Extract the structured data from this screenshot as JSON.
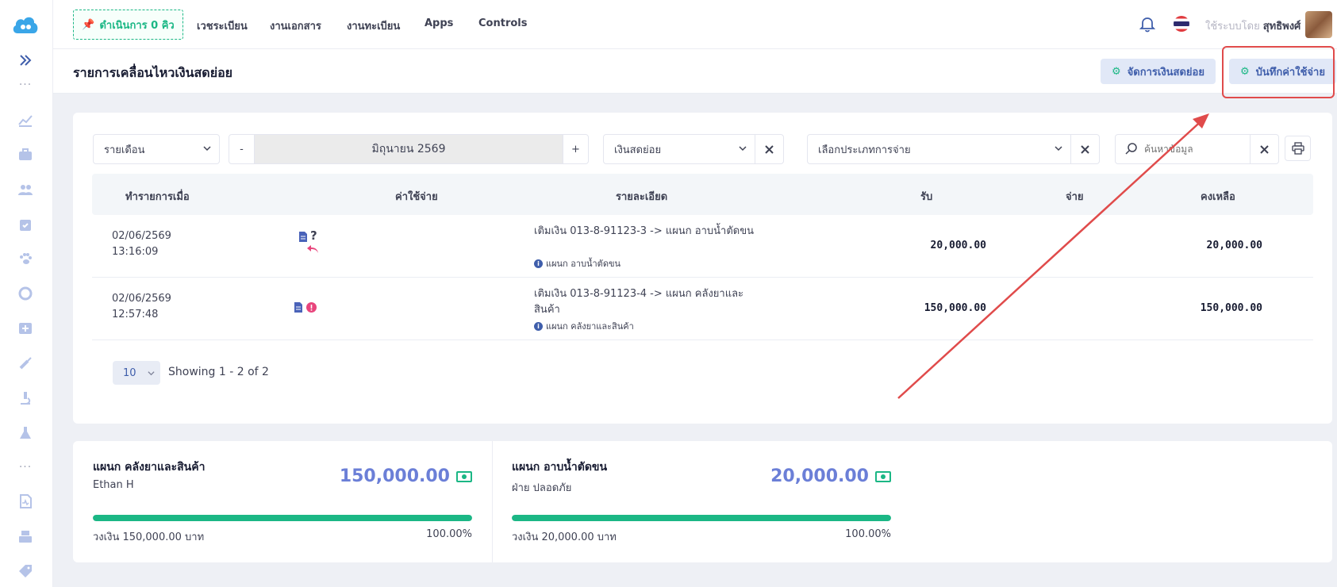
{
  "topbar": {
    "queue_button": "ดำเนินการ 0 คิว",
    "nav": [
      "เวชระเบียน",
      "งานเอกสาร",
      "งานทะเบียน",
      "Apps",
      "Controls"
    ],
    "user_prefix": "ใช้ระบบโดย",
    "user_name": "สุทธิพงศ์"
  },
  "subheader": {
    "title": "รายการเคลื่อนไหวเงินสดย่อย",
    "manage_button": "จัดการเงินสดย่อย",
    "record_button": "บันทึกค่าใช้จ่าย"
  },
  "filters": {
    "period": "รายเดือน",
    "minus": "-",
    "month": "มิถุนายน 2569",
    "plus": "+",
    "fund": "เงินสดย่อย",
    "payment_type_placeholder": "เลือกประเภทการจ่าย",
    "search_placeholder": "ค้นหาข้อมูล"
  },
  "table": {
    "headers": [
      "ทำรายการเมื่อ",
      "ค่าใช้จ่าย",
      "รายละเอียด",
      "รับ",
      "จ่าย",
      "คงเหลือ"
    ],
    "rows": [
      {
        "date": "02/06/2569",
        "time": "13:16:09",
        "detail": "เติมเงิน 013-8-91123-3 -> แผนก อาบน้ำตัดขน",
        "sub": "แผนก อาบน้ำตัดขน",
        "receive": "20,000.00",
        "pay": "",
        "balance": "20,000.00"
      },
      {
        "date": "02/06/2569",
        "time": "12:57:48",
        "detail": "เติมเงิน 013-8-91123-4 -> แผนก คลังยาและสินค้า",
        "sub": "แผนก คลังยาและสินค้า",
        "receive": "150,000.00",
        "pay": "",
        "balance": "150,000.00"
      }
    ]
  },
  "pager": {
    "page_size": "10",
    "showing": "Showing 1 - 2 of 2"
  },
  "summary": [
    {
      "title": "แผนก คลังยาและสินค้า",
      "sub": "Ethan H",
      "amount": "150,000.00",
      "progress": 1.0,
      "limit": "วงเงิน 150,000.00 บาท",
      "percent": "100.00%"
    },
    {
      "title": "แผนก อาบน้ำตัดขน",
      "sub": "ฝ่าย ปลอดภัย",
      "amount": "20,000.00",
      "progress": 1.0,
      "limit": "วงเงิน 20,000.00 บาท",
      "percent": "100.00%"
    }
  ],
  "colors": {
    "accent_green": "#1bb785",
    "accent_blue": "#6b7fd7",
    "annotation_red": "#e04b4b"
  }
}
